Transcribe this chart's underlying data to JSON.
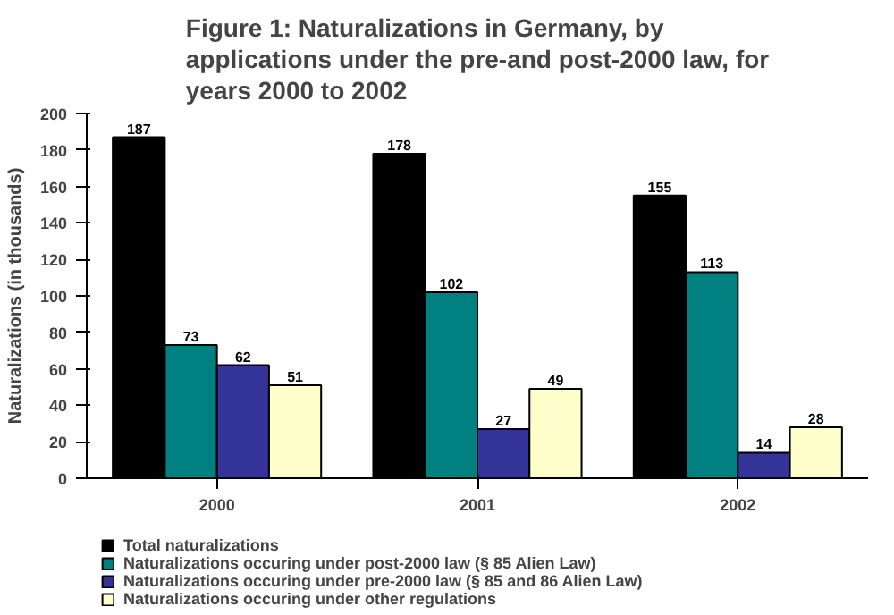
{
  "chart_data": {
    "type": "bar",
    "title": "Figure 1: Naturalizations in Germany, by applications under the pre-and post-2000 law, for years 2000 to 2002",
    "ylabel": "Naturalizations (in thousands)",
    "categories": [
      "2000",
      "2001",
      "2002"
    ],
    "series": [
      {
        "name": "Total naturalizations",
        "color": "#000000",
        "values": [
          187,
          178,
          155
        ]
      },
      {
        "name": "Naturalizations occuring under post-2000 law (§ 85 Alien Law)",
        "color": "#008080",
        "values": [
          73,
          102,
          113
        ]
      },
      {
        "name": "Naturalizations occuring under pre-2000 law (§ 85 and 86 Alien Law)",
        "color": "#333399",
        "values": [
          62,
          27,
          14
        ]
      },
      {
        "name": "Naturalizations occuring under other regulations",
        "color": "#ffffcc",
        "values": [
          51,
          49,
          28
        ]
      }
    ],
    "ylim": [
      0,
      200
    ],
    "yticks": [
      0,
      20,
      40,
      60,
      80,
      100,
      120,
      140,
      160,
      180,
      200
    ],
    "grid": false,
    "legend": "bottom",
    "data_labels": true
  }
}
